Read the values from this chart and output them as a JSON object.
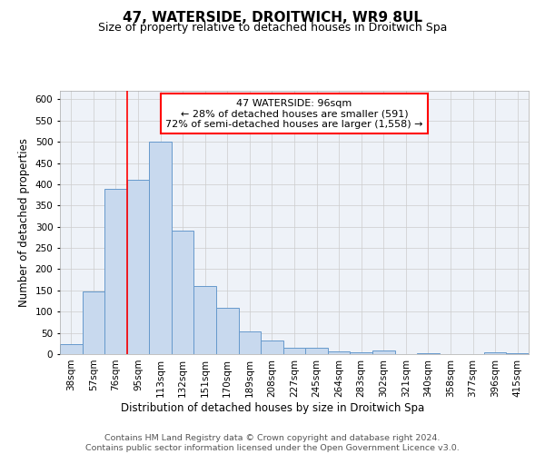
{
  "title": "47, WATERSIDE, DROITWICH, WR9 8UL",
  "subtitle": "Size of property relative to detached houses in Droitwich Spa",
  "xlabel": "Distribution of detached houses by size in Droitwich Spa",
  "ylabel": "Number of detached properties",
  "categories": [
    "38sqm",
    "57sqm",
    "76sqm",
    "95sqm",
    "113sqm",
    "132sqm",
    "151sqm",
    "170sqm",
    "189sqm",
    "208sqm",
    "227sqm",
    "245sqm",
    "264sqm",
    "283sqm",
    "302sqm",
    "321sqm",
    "340sqm",
    "358sqm",
    "377sqm",
    "396sqm",
    "415sqm"
  ],
  "values": [
    23,
    148,
    390,
    410,
    500,
    290,
    160,
    110,
    53,
    32,
    16,
    15,
    7,
    5,
    9,
    0,
    3,
    1,
    0,
    4,
    3
  ],
  "bar_color": "#c8d9ee",
  "bar_edge_color": "#6699cc",
  "red_line_x": 2.5,
  "annotation_text_line1": "47 WATERSIDE: 96sqm",
  "annotation_text_line2": "← 28% of detached houses are smaller (591)",
  "annotation_text_line3": "72% of semi-detached houses are larger (1,558) →",
  "annotation_box_color": "white",
  "annotation_box_edge_color": "red",
  "ylim": [
    0,
    620
  ],
  "yticks": [
    0,
    50,
    100,
    150,
    200,
    250,
    300,
    350,
    400,
    450,
    500,
    550,
    600
  ],
  "grid_color": "#cccccc",
  "background_color": "#eef2f8",
  "footer_line1": "Contains HM Land Registry data © Crown copyright and database right 2024.",
  "footer_line2": "Contains public sector information licensed under the Open Government Licence v3.0.",
  "title_fontsize": 11,
  "subtitle_fontsize": 9,
  "axis_label_fontsize": 8.5,
  "tick_fontsize": 7.5,
  "annotation_fontsize": 8,
  "footer_fontsize": 6.8
}
